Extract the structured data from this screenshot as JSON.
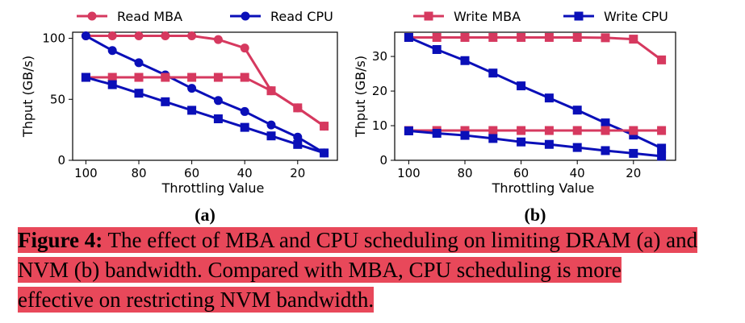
{
  "colors": {
    "mba": "#d6395f",
    "cpu": "#0a0fb8",
    "highlight": "#e8485a"
  },
  "chart_data": [
    {
      "type": "line",
      "sublabel": "(a)",
      "xlabel": "Throttling Value",
      "ylabel": "Thput (GB/s)",
      "xlim": [
        105,
        5
      ],
      "ylim": [
        0,
        105
      ],
      "xticks": [
        100,
        80,
        60,
        40,
        20
      ],
      "yticks": [
        0,
        50,
        100
      ],
      "legend": "top",
      "series": [
        {
          "name": "Read MBA",
          "marker": "circle",
          "color": "#d6395f",
          "x": [
            100,
            90,
            80,
            70,
            60,
            50,
            40,
            30,
            20,
            10
          ],
          "y": [
            102,
            102,
            102,
            102,
            102,
            99,
            92,
            57,
            43,
            28
          ]
        },
        {
          "name": "Read CPU",
          "marker": "circle",
          "color": "#0a0fb8",
          "x": [
            100,
            90,
            80,
            70,
            60,
            50,
            40,
            30,
            20,
            10
          ],
          "y": [
            102,
            90,
            80,
            70,
            59,
            49,
            40,
            29,
            19,
            6
          ]
        },
        {
          "name": "",
          "marker": "square",
          "color": "#d6395f",
          "x": [
            100,
            90,
            80,
            70,
            60,
            50,
            40,
            30,
            20,
            10
          ],
          "y": [
            68,
            68,
            68,
            68,
            68,
            68,
            68,
            57,
            43,
            28
          ]
        },
        {
          "name": "",
          "marker": "square",
          "color": "#0a0fb8",
          "x": [
            100,
            90,
            80,
            70,
            60,
            50,
            40,
            30,
            20,
            10
          ],
          "y": [
            68,
            62,
            55,
            48,
            41,
            34,
            27,
            20,
            13,
            6
          ]
        }
      ]
    },
    {
      "type": "line",
      "sublabel": "(b)",
      "xlabel": "Throttling Value",
      "ylabel": "Thput (GB/s)",
      "xlim": [
        105,
        5
      ],
      "ylim": [
        0,
        37
      ],
      "xticks": [
        100,
        80,
        60,
        40,
        20
      ],
      "yticks": [
        0,
        10,
        20,
        30
      ],
      "legend": "top",
      "series": [
        {
          "name": "Write MBA",
          "marker": "square",
          "color": "#d6395f",
          "x": [
            100,
            90,
            80,
            70,
            60,
            50,
            40,
            30,
            20,
            10
          ],
          "y": [
            35.5,
            35.5,
            35.5,
            35.5,
            35.5,
            35.5,
            35.5,
            35.4,
            35,
            29
          ]
        },
        {
          "name": "Write CPU",
          "marker": "square",
          "color": "#0a0fb8",
          "x": [
            100,
            90,
            80,
            70,
            60,
            50,
            40,
            30,
            20,
            10
          ],
          "y": [
            35.5,
            32,
            28.8,
            25.2,
            21.5,
            18,
            14.5,
            10.8,
            7.3,
            3.5
          ]
        },
        {
          "name": "",
          "marker": "square",
          "color": "#d6395f",
          "x": [
            100,
            90,
            80,
            70,
            60,
            50,
            40,
            30,
            20,
            10
          ],
          "y": [
            8.6,
            8.6,
            8.6,
            8.6,
            8.6,
            8.6,
            8.6,
            8.6,
            8.6,
            8.6
          ]
        },
        {
          "name": "",
          "marker": "square",
          "color": "#0a0fb8",
          "x": [
            100,
            90,
            80,
            70,
            60,
            50,
            40,
            30,
            20,
            10
          ],
          "y": [
            8.5,
            7.8,
            7.2,
            6.3,
            5.3,
            4.6,
            3.7,
            2.8,
            2,
            1.2
          ]
        }
      ]
    }
  ],
  "caption": {
    "label": "Figure 4:",
    "text": " The effect of MBA and CPU scheduling on limiting DRAM (a) and NVM (b) bandwidth. Compared with MBA, CPU scheduling is more effective on restricting NVM bandwidth."
  }
}
